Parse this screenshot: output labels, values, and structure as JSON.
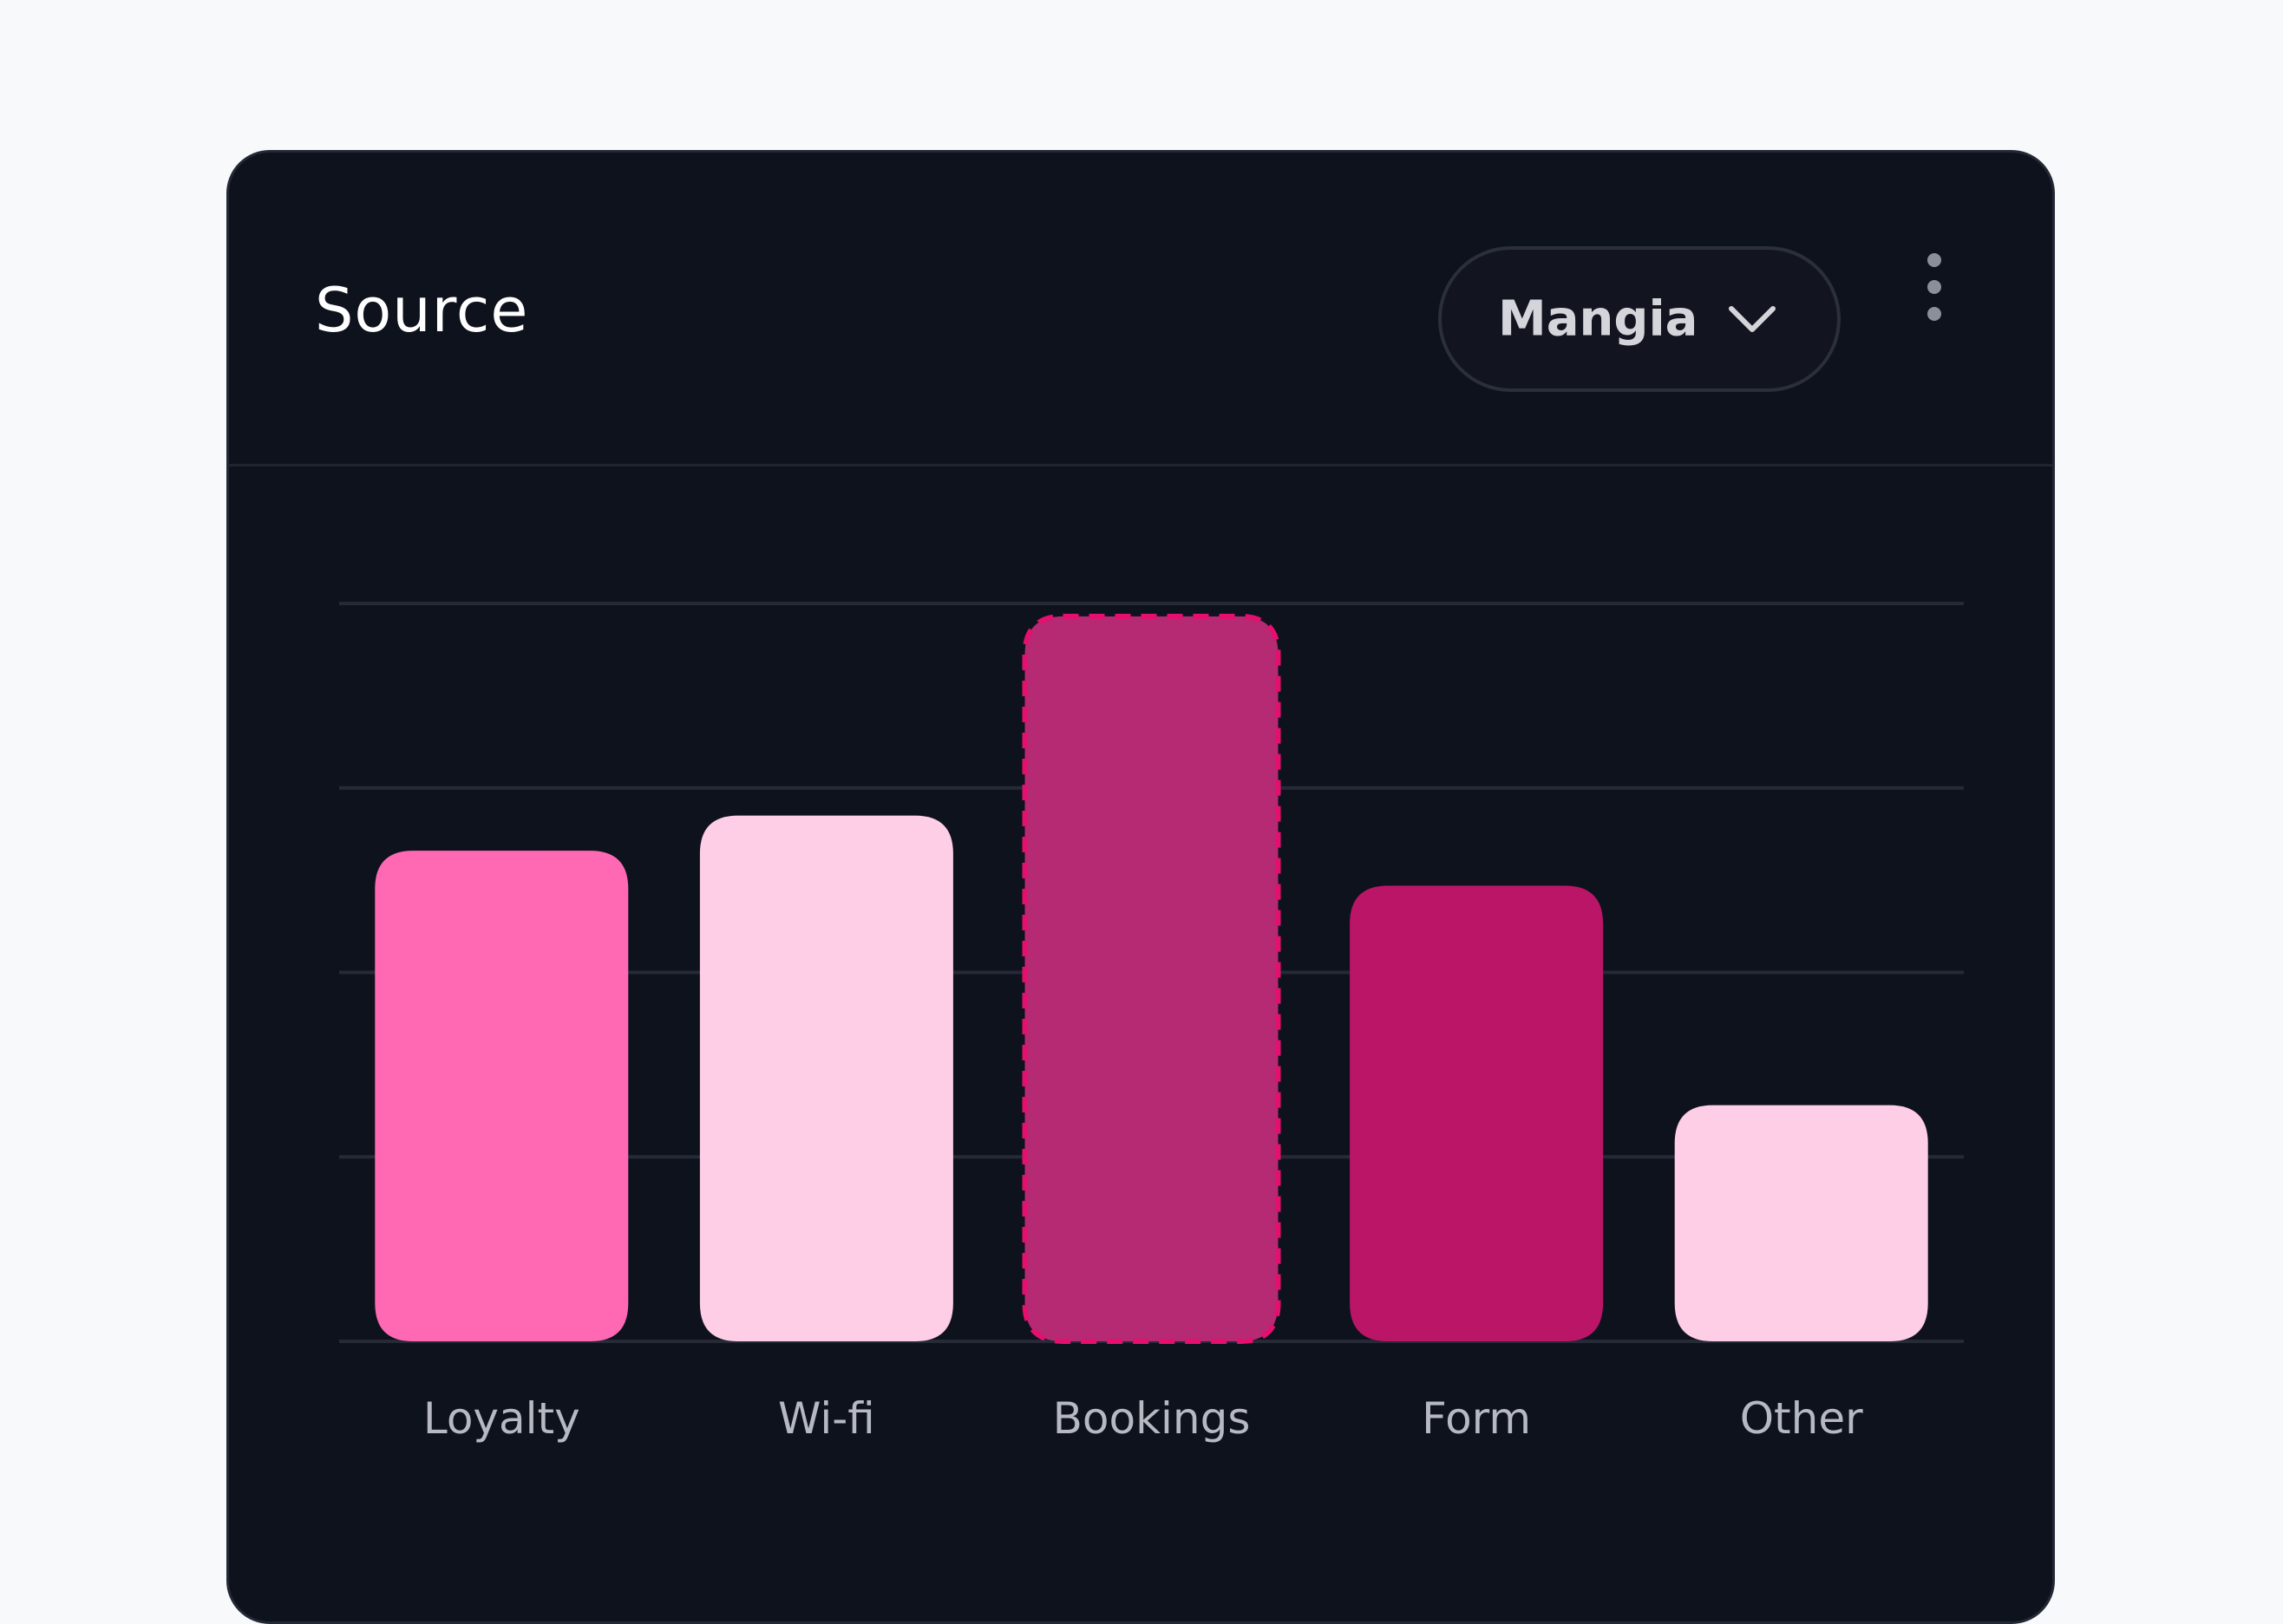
{
  "card": {
    "title": "Source",
    "dropdown_value": "Mangia",
    "dropdown_icon": "chevron-down-icon",
    "menu_icon": "more-vertical-icon"
  },
  "chart_data": {
    "type": "bar",
    "categories": [
      "Loyalty",
      "Wi-fi",
      "Bookings",
      "Form",
      "Other"
    ],
    "values": [
      2.66,
      2.85,
      3.93,
      2.47,
      1.28
    ],
    "ylim": [
      0,
      4
    ],
    "grid": true,
    "highlighted_index": 2,
    "colors": [
      "#ff69b4",
      "#fecde6",
      "#b62a73",
      "#bb1568",
      "#fecde6"
    ],
    "highlight_border_color": "#e3106f"
  }
}
